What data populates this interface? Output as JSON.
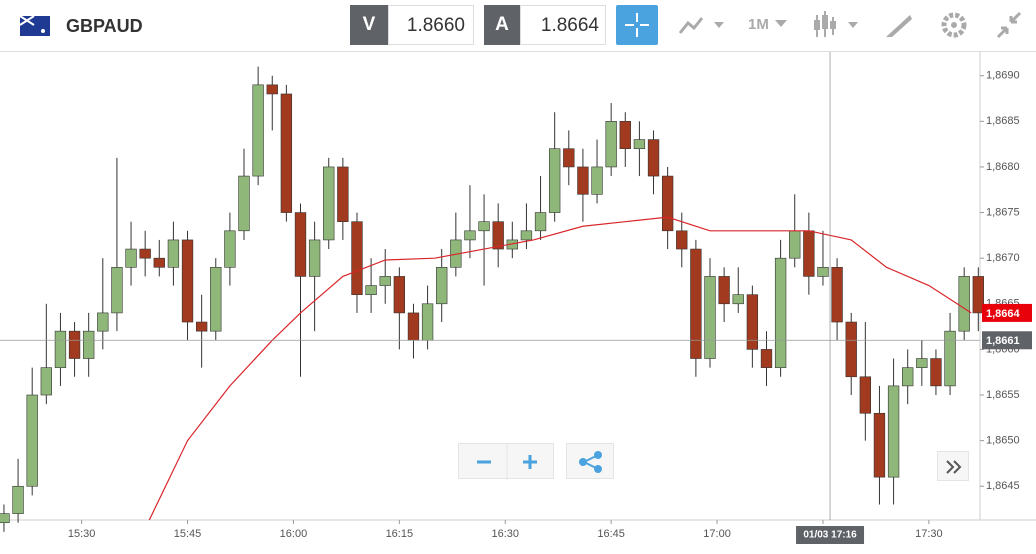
{
  "toolbar": {
    "symbol": "GBPAUD",
    "bid_label": "V",
    "bid": "1.8660",
    "ask_label": "A",
    "ask": "1.8664",
    "timeframe": "1M"
  },
  "chart_data": {
    "type": "candlestick",
    "xlim": [
      -0.28,
      69.12
    ],
    "ylim": [
      1.86413,
      1.86926
    ],
    "xticks": [
      {
        "value": 5.5,
        "label": "15:30"
      },
      {
        "value": 13,
        "label": "15:45"
      },
      {
        "value": 20.5,
        "label": "16:00"
      },
      {
        "value": 28,
        "label": "16:15"
      },
      {
        "value": 35.5,
        "label": "16:30"
      },
      {
        "value": 43,
        "label": "16:45"
      },
      {
        "value": 50.5,
        "label": "17:00"
      },
      {
        "value": 58,
        "label": "17:15"
      },
      {
        "value": 65.5,
        "label": "17:30"
      }
    ],
    "yticks": [
      {
        "value": 1.8645,
        "label": "1,8645"
      },
      {
        "value": 1.865,
        "label": "1,8650"
      },
      {
        "value": 1.8655,
        "label": "1,8655"
      },
      {
        "value": 1.866,
        "label": "1,8660"
      },
      {
        "value": 1.8665,
        "label": "1,8665"
      },
      {
        "value": 1.867,
        "label": "1,8670"
      },
      {
        "value": 1.8675,
        "label": "1,8675"
      },
      {
        "value": 1.868,
        "label": "1,8680"
      },
      {
        "value": 1.8685,
        "label": "1,8685"
      },
      {
        "value": 1.869,
        "label": "1,8690"
      }
    ],
    "up_color": "#8fb77a",
    "down_color": "#a13a1e",
    "candles": [
      [
        1.8641,
        1.8643,
        1.864,
        1.8642
      ],
      [
        1.8642,
        1.8648,
        1.8641,
        1.8645
      ],
      [
        1.8645,
        1.8658,
        1.8644,
        1.8655
      ],
      [
        1.8655,
        1.8665,
        1.8654,
        1.8658
      ],
      [
        1.8658,
        1.8664,
        1.8656,
        1.8662
      ],
      [
        1.8662,
        1.8663,
        1.8657,
        1.8659
      ],
      [
        1.8659,
        1.8664,
        1.8657,
        1.8662
      ],
      [
        1.8662,
        1.867,
        1.866,
        1.8664
      ],
      [
        1.8664,
        1.8681,
        1.8662,
        1.8669
      ],
      [
        1.8669,
        1.8674,
        1.8667,
        1.8671
      ],
      [
        1.8671,
        1.8673,
        1.8668,
        1.867
      ],
      [
        1.867,
        1.8672,
        1.8668,
        1.8669
      ],
      [
        1.8669,
        1.8674,
        1.8667,
        1.8672
      ],
      [
        1.8672,
        1.8673,
        1.8661,
        1.8663
      ],
      [
        1.8663,
        1.8666,
        1.8658,
        1.8662
      ],
      [
        1.8662,
        1.867,
        1.8661,
        1.8669
      ],
      [
        1.8669,
        1.8675,
        1.8667,
        1.8673
      ],
      [
        1.8673,
        1.8682,
        1.8672,
        1.8679
      ],
      [
        1.8679,
        1.8691,
        1.8678,
        1.8689
      ],
      [
        1.8689,
        1.869,
        1.8684,
        1.8688
      ],
      [
        1.8688,
        1.8689,
        1.8674,
        1.8675
      ],
      [
        1.8675,
        1.8676,
        1.8657,
        1.8668
      ],
      [
        1.8668,
        1.8674,
        1.8662,
        1.8672
      ],
      [
        1.8672,
        1.8681,
        1.8671,
        1.868
      ],
      [
        1.868,
        1.8681,
        1.8672,
        1.8674
      ],
      [
        1.8674,
        1.8675,
        1.8664,
        1.8666
      ],
      [
        1.8666,
        1.867,
        1.8664,
        1.8667
      ],
      [
        1.8667,
        1.8671,
        1.8665,
        1.8668
      ],
      [
        1.8668,
        1.8669,
        1.866,
        1.8664
      ],
      [
        1.8664,
        1.8665,
        1.8659,
        1.8661
      ],
      [
        1.8661,
        1.8667,
        1.866,
        1.8665
      ],
      [
        1.8665,
        1.8671,
        1.8663,
        1.8669
      ],
      [
        1.8669,
        1.8675,
        1.8668,
        1.8672
      ],
      [
        1.8672,
        1.8678,
        1.867,
        1.8673
      ],
      [
        1.8673,
        1.8677,
        1.8667,
        1.8674
      ],
      [
        1.8674,
        1.8676,
        1.8669,
        1.8671
      ],
      [
        1.8671,
        1.8674,
        1.867,
        1.8672
      ],
      [
        1.8672,
        1.8676,
        1.8671,
        1.8673
      ],
      [
        1.8673,
        1.8679,
        1.8672,
        1.8675
      ],
      [
        1.8675,
        1.8686,
        1.8674,
        1.8682
      ],
      [
        1.8682,
        1.8684,
        1.8678,
        1.868
      ],
      [
        1.868,
        1.8682,
        1.8674,
        1.8677
      ],
      [
        1.8677,
        1.8683,
        1.8676,
        1.868
      ],
      [
        1.868,
        1.8687,
        1.8679,
        1.8685
      ],
      [
        1.8685,
        1.8686,
        1.868,
        1.8682
      ],
      [
        1.8682,
        1.8685,
        1.8679,
        1.8683
      ],
      [
        1.8683,
        1.8684,
        1.8677,
        1.8679
      ],
      [
        1.8679,
        1.868,
        1.8671,
        1.8673
      ],
      [
        1.8673,
        1.8675,
        1.8669,
        1.8671
      ],
      [
        1.8671,
        1.8672,
        1.8657,
        1.8659
      ],
      [
        1.8659,
        1.867,
        1.8658,
        1.8668
      ],
      [
        1.8668,
        1.8669,
        1.8663,
        1.8665
      ],
      [
        1.8665,
        1.8669,
        1.8664,
        1.8666
      ],
      [
        1.8666,
        1.8667,
        1.8658,
        1.866
      ],
      [
        1.866,
        1.8662,
        1.8656,
        1.8658
      ],
      [
        1.8658,
        1.8672,
        1.8657,
        1.867
      ],
      [
        1.867,
        1.8677,
        1.8669,
        1.8673
      ],
      [
        1.8673,
        1.8675,
        1.8666,
        1.8668
      ],
      [
        1.8668,
        1.8673,
        1.8667,
        1.8669
      ],
      [
        1.8669,
        1.867,
        1.8661,
        1.8663
      ],
      [
        1.8663,
        1.8664,
        1.8655,
        1.8657
      ],
      [
        1.8657,
        1.8663,
        1.865,
        1.8653
      ],
      [
        1.8653,
        1.8656,
        1.8643,
        1.8646
      ],
      [
        1.8646,
        1.8659,
        1.8643,
        1.8656
      ],
      [
        1.8656,
        1.866,
        1.8654,
        1.8658
      ],
      [
        1.8658,
        1.8661,
        1.8656,
        1.8659
      ],
      [
        1.8659,
        1.866,
        1.8655,
        1.8656
      ],
      [
        1.8656,
        1.8664,
        1.8655,
        1.8662
      ],
      [
        1.8662,
        1.8669,
        1.8661,
        1.8668
      ],
      [
        1.8668,
        1.8669,
        1.8662,
        1.8664
      ]
    ],
    "ma": {
      "color": "#d9262b",
      "x": [
        10.2,
        13,
        16,
        19,
        21,
        24,
        27,
        30.5,
        34,
        37.5,
        41,
        44,
        47,
        50,
        54,
        57,
        60,
        62.5,
        65.5,
        68.5
      ],
      "values": [
        1.8641,
        1.865,
        1.8656,
        1.8661,
        1.8664,
        1.8668,
        1.86698,
        1.867,
        1.8671,
        1.8672,
        1.86735,
        1.8674,
        1.86745,
        1.8673,
        1.8673,
        1.8673,
        1.8672,
        1.8669,
        1.8667,
        1.8664
      ]
    },
    "price_markers": [
      {
        "value": 1.8664,
        "label": "1,8664",
        "color": "#e8000b"
      },
      {
        "value": 1.8661,
        "label": "1,8661",
        "color": "#5f6368"
      }
    ],
    "crosshair": {
      "x": 58.5,
      "label": "01/03 17:16"
    }
  }
}
